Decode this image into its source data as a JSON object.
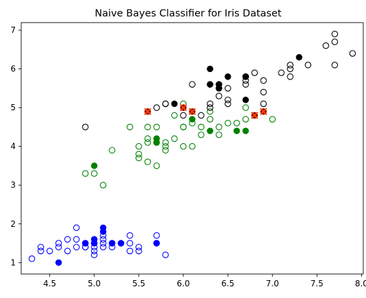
{
  "chart_data": {
    "type": "scatter",
    "title": "Naive Bayes Classifier for Iris Dataset",
    "xlabel": "",
    "ylabel": "",
    "xlim": [
      4.18,
      8.02
    ],
    "ylim": [
      0.705,
      7.195
    ],
    "xticks": [
      "4.5",
      "5.0",
      "5.5",
      "6.0",
      "6.5",
      "7.0",
      "7.5",
      "8.0"
    ],
    "yticks": [
      "1",
      "2",
      "3",
      "4",
      "5",
      "6",
      "7"
    ],
    "grid": false,
    "colors": {
      "setosa": "#0000ff",
      "versicolor": "#008000",
      "virginica": "#000000",
      "misclassified_fill": "#8b0000",
      "misclassified_cross": "#ff4500"
    },
    "series": [
      {
        "class": "setosa",
        "color": "#0000ff",
        "marker": "open-circle",
        "role": "train",
        "x": [
          4.3,
          4.4,
          4.4,
          4.5,
          4.6,
          4.6,
          4.7,
          4.7,
          4.8,
          4.8,
          4.8,
          4.9,
          4.9,
          4.9,
          5.0,
          5.0,
          5.0,
          5.0,
          5.0,
          5.1,
          5.1,
          5.1,
          5.1,
          5.2,
          5.2,
          5.3,
          5.4,
          5.4,
          5.4,
          5.5,
          5.5,
          5.7,
          5.7,
          5.8
        ],
        "y": [
          1.1,
          1.3,
          1.4,
          1.3,
          1.4,
          1.5,
          1.3,
          1.6,
          1.4,
          1.6,
          1.9,
          1.4,
          1.5,
          1.4,
          1.2,
          1.3,
          1.4,
          1.5,
          1.6,
          1.4,
          1.5,
          1.6,
          1.7,
          1.4,
          1.5,
          1.5,
          1.3,
          1.5,
          1.7,
          1.3,
          1.4,
          1.5,
          1.7,
          1.2
        ]
      },
      {
        "class": "setosa",
        "color": "#0000ff",
        "marker": "filled-circle",
        "role": "test-correct",
        "x": [
          4.6,
          4.9,
          5.0,
          5.0,
          5.1,
          5.1,
          5.2,
          5.3,
          5.7
        ],
        "y": [
          1.0,
          1.5,
          1.5,
          1.6,
          1.8,
          1.9,
          1.5,
          1.5,
          1.5
        ]
      },
      {
        "class": "versicolor",
        "color": "#008000",
        "marker": "open-circle",
        "role": "train",
        "x": [
          4.9,
          5.0,
          5.1,
          5.2,
          5.5,
          5.5,
          5.5,
          5.6,
          5.6,
          5.6,
          5.7,
          5.7,
          5.7,
          5.7,
          5.8,
          5.8,
          5.8,
          5.9,
          5.9,
          6.0,
          6.0,
          6.0,
          6.0,
          6.1,
          6.1,
          6.2,
          6.2,
          6.3,
          6.3,
          6.4,
          6.4,
          6.5,
          6.6,
          6.7,
          6.7,
          6.8,
          7.0,
          5.4,
          5.6
        ],
        "y": [
          3.3,
          3.3,
          3.0,
          3.9,
          3.7,
          3.8,
          4.0,
          3.6,
          4.1,
          4.2,
          3.5,
          4.2,
          4.5,
          4.1,
          3.9,
          4.0,
          4.1,
          4.2,
          4.8,
          4.0,
          4.5,
          4.5,
          5.1,
          4.0,
          4.6,
          4.3,
          4.5,
          4.7,
          4.9,
          4.3,
          4.5,
          4.6,
          4.6,
          4.7,
          5.0,
          4.8,
          4.7,
          4.5,
          4.5
        ]
      },
      {
        "class": "versicolor",
        "color": "#008000",
        "marker": "filled-circle",
        "role": "test-correct",
        "x": [
          5.0,
          5.7,
          5.7,
          6.1,
          6.3,
          6.6,
          6.7
        ],
        "y": [
          3.5,
          4.1,
          4.2,
          4.7,
          4.4,
          4.4,
          4.4
        ]
      },
      {
        "class": "virginica",
        "color": "#000000",
        "marker": "open-circle",
        "role": "train",
        "x": [
          4.9,
          5.7,
          5.8,
          5.8,
          6.0,
          6.1,
          6.2,
          6.3,
          6.3,
          6.3,
          6.4,
          6.4,
          6.5,
          6.5,
          6.5,
          6.7,
          6.7,
          6.7,
          6.8,
          6.9,
          6.9,
          7.1,
          7.2,
          7.2,
          7.2,
          7.4,
          7.6,
          7.7,
          7.7,
          7.7,
          7.9,
          6.4,
          6.9,
          6.7
        ],
        "y": [
          4.5,
          5.0,
          5.1,
          5.1,
          4.8,
          5.6,
          4.8,
          5.0,
          5.1,
          5.6,
          5.3,
          5.5,
          5.1,
          5.2,
          5.5,
          5.6,
          5.7,
          5.8,
          5.9,
          5.1,
          5.7,
          5.9,
          5.8,
          6.0,
          6.1,
          6.1,
          6.6,
          6.1,
          6.7,
          6.9,
          6.4,
          5.6,
          5.4,
          5.8
        ]
      },
      {
        "class": "virginica",
        "color": "#000000",
        "marker": "filled-circle",
        "role": "test-correct",
        "x": [
          5.9,
          6.3,
          6.3,
          6.4,
          6.4,
          6.5,
          6.7,
          6.7,
          7.3
        ],
        "y": [
          5.1,
          6.0,
          5.6,
          5.6,
          5.5,
          5.8,
          5.8,
          5.2,
          6.3
        ]
      },
      {
        "class": "misclassified",
        "color": "#8b0000",
        "marker": "filled-circle-with-x",
        "role": "test-misclassified",
        "x": [
          5.6,
          6.0,
          6.1,
          6.8,
          6.9
        ],
        "y": [
          4.9,
          5.0,
          4.9,
          4.8,
          4.9
        ]
      }
    ]
  }
}
